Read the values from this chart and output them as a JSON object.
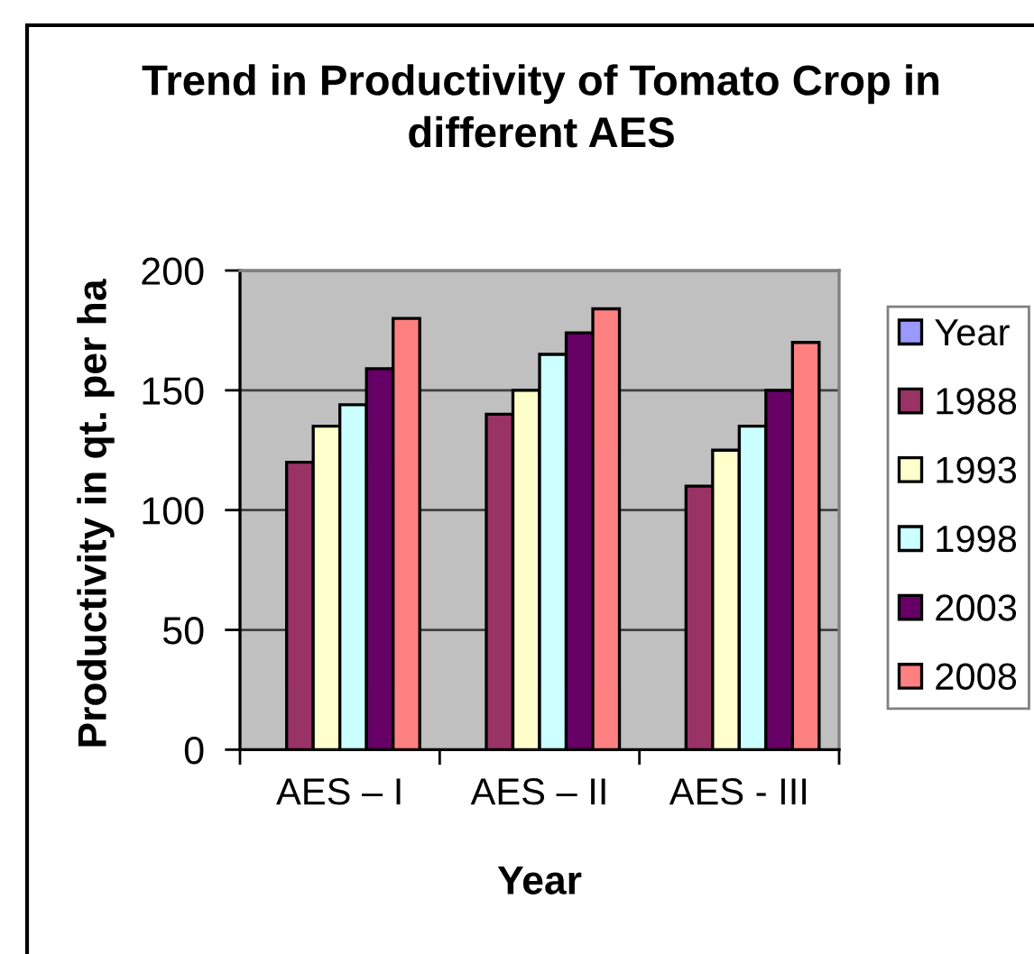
{
  "chart_data": {
    "type": "bar",
    "title": "Trend in Productivity of Tomato Crop in\ndifferent AES",
    "xlabel": "Year",
    "ylabel": "Productivity in qt. per ha",
    "categories": [
      "AES – I",
      "AES – II",
      "AES - III"
    ],
    "series": [
      {
        "name": "Year",
        "color": "#9999ff",
        "values": [
          null,
          null,
          null
        ]
      },
      {
        "name": "1988",
        "color": "#993366",
        "values": [
          120,
          140,
          110
        ]
      },
      {
        "name": "1993",
        "color": "#ffffcc",
        "values": [
          135,
          150,
          125
        ]
      },
      {
        "name": "1998",
        "color": "#ccffff",
        "values": [
          144,
          165,
          135
        ]
      },
      {
        "name": "2003",
        "color": "#660066",
        "values": [
          159,
          174,
          150
        ]
      },
      {
        "name": "2008",
        "color": "#ff8080",
        "values": [
          180,
          184,
          170
        ]
      }
    ],
    "ylim": [
      0,
      200
    ],
    "yticks": [
      0,
      50,
      100,
      150,
      200
    ],
    "grid": "y",
    "legend": "right"
  }
}
